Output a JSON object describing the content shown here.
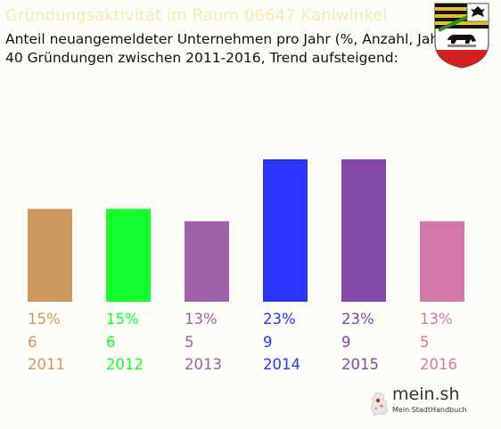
{
  "header": {
    "title": "Gründungsaktivität im Raum 06647 Kahlwinkel",
    "subtitle_line1": "Anteil neuangemeldeter Unternehmen pro Jahr (%, Anzahl, Jahr)",
    "subtitle_line2": "40 Gründungen zwischen 2011-2016, Trend aufsteigend:"
  },
  "branding": {
    "logo_text": "mein.sh",
    "logo_subtext": "Mein StadtHandbuch"
  },
  "chart_data": {
    "type": "bar",
    "categories": [
      "2011",
      "2012",
      "2013",
      "2014",
      "2015",
      "2016"
    ],
    "values": [
      15,
      15,
      13,
      23,
      23,
      13
    ],
    "counts": [
      6,
      6,
      5,
      9,
      9,
      5
    ],
    "percent_labels": [
      "15%",
      "15%",
      "13%",
      "23%",
      "23%",
      "13%"
    ],
    "colors": [
      "#cc9a5c",
      "#14ff2e",
      "#9e60a6",
      "#2b35ff",
      "#8347a9",
      "#d478ab"
    ],
    "title": "Gründungsaktivität im Raum 06647 Kahlwinkel",
    "ylim": [
      0,
      23
    ],
    "grid": false,
    "legend": "none"
  }
}
